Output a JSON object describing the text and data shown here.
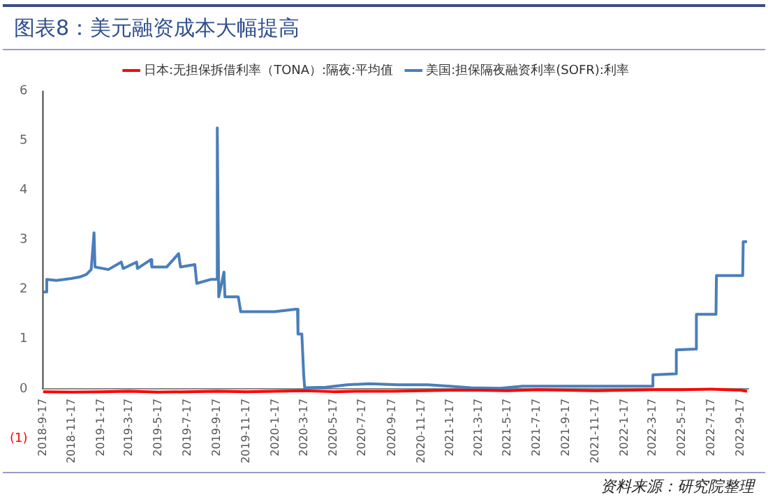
{
  "chart_data": {
    "type": "line",
    "title": "图表8：美元融资成本大幅提高",
    "x": [
      "2018-09-17",
      "2018-11-17",
      "2019-01-17",
      "2019-03-17",
      "2019-05-17",
      "2019-07-17",
      "2019-09-17",
      "2019-11-17",
      "2020-01-17",
      "2020-03-17",
      "2020-05-17",
      "2020-07-17",
      "2020-09-17",
      "2020-11-17",
      "2021-01-17",
      "2021-03-17",
      "2021-05-17",
      "2021-07-17",
      "2021-09-17",
      "2021-11-17",
      "2022-01-17",
      "2022-03-17",
      "2022-05-17",
      "2022-07-17",
      "2022-09-17",
      "2022-09-30"
    ],
    "series": [
      {
        "name": "日本:无担保拆借利率（TONA）:隔夜:平均值",
        "color": "#ff0000",
        "values": [
          -0.06,
          -0.07,
          -0.06,
          -0.05,
          -0.07,
          -0.06,
          -0.05,
          -0.06,
          -0.05,
          -0.04,
          -0.06,
          -0.05,
          -0.05,
          -0.04,
          -0.03,
          -0.03,
          -0.04,
          -0.02,
          -0.03,
          -0.04,
          -0.03,
          -0.02,
          -0.02,
          -0.01,
          -0.03,
          -0.05
        ]
      },
      {
        "name": "美国:担保隔夜融资利率(SOFR):利率",
        "color": "#4a7ebb",
        "x": [
          "2018-09-17",
          "2018-09-24",
          "2018-09-25",
          "2018-10-15",
          "2018-11-01",
          "2018-11-15",
          "2018-12-03",
          "2018-12-17",
          "2018-12-27",
          "2019-01-02",
          "2019-01-04",
          "2019-02-01",
          "2019-02-28",
          "2019-03-04",
          "2019-04-01",
          "2019-04-03",
          "2019-05-01",
          "2019-05-03",
          "2019-06-03",
          "2019-06-28",
          "2019-07-02",
          "2019-08-01",
          "2019-08-05",
          "2019-09-03",
          "2019-09-16",
          "2019-09-17",
          "2019-09-20",
          "2019-10-01",
          "2019-10-03",
          "2019-10-31",
          "2019-11-05",
          "2019-12-31",
          "2020-01-15",
          "2020-02-28",
          "2020-03-03",
          "2020-03-04",
          "2020-03-12",
          "2020-03-16",
          "2020-03-18",
          "2020-05-01",
          "2020-06-15",
          "2020-08-01",
          "2020-10-01",
          "2020-12-01",
          "2021-01-15",
          "2021-03-01",
          "2021-05-01",
          "2021-06-17",
          "2022-03-16",
          "2022-03-17",
          "2022-05-04",
          "2022-05-05",
          "2022-06-15",
          "2022-06-16",
          "2022-07-27",
          "2022-07-28",
          "2022-09-21",
          "2022-09-22",
          "2022-09-30"
        ],
        "values": [
          1.95,
          1.95,
          2.2,
          2.18,
          2.2,
          2.22,
          2.25,
          2.3,
          2.4,
          3.14,
          2.45,
          2.4,
          2.55,
          2.42,
          2.55,
          2.42,
          2.6,
          2.45,
          2.45,
          2.72,
          2.45,
          2.5,
          2.12,
          2.2,
          2.2,
          5.25,
          1.85,
          2.35,
          1.85,
          1.85,
          1.55,
          1.55,
          1.55,
          1.6,
          1.6,
          1.1,
          1.1,
          0.26,
          0.02,
          0.03,
          0.08,
          0.1,
          0.08,
          0.08,
          0.05,
          0.02,
          0.01,
          0.05,
          0.05,
          0.28,
          0.3,
          0.78,
          0.8,
          1.5,
          1.5,
          2.28,
          2.28,
          2.96,
          2.96
        ]
      }
    ],
    "xlim": [
      "2018-09-17",
      "2022-10-03"
    ],
    "xticks": [
      {
        "value": "2018-09-17",
        "label": "2018-9-17"
      },
      {
        "value": "2018-11-17",
        "label": "2018-11-17"
      },
      {
        "value": "2019-01-17",
        "label": "2019-1-17"
      },
      {
        "value": "2019-03-17",
        "label": "2019-3-17"
      },
      {
        "value": "2019-05-17",
        "label": "2019-5-17"
      },
      {
        "value": "2019-07-17",
        "label": "2019-7-17"
      },
      {
        "value": "2019-09-17",
        "label": "2019-9-17"
      },
      {
        "value": "2019-11-17",
        "label": "2019-11-17"
      },
      {
        "value": "2020-01-17",
        "label": "2020-1-17"
      },
      {
        "value": "2020-03-17",
        "label": "2020-3-17"
      },
      {
        "value": "2020-05-17",
        "label": "2020-5-17"
      },
      {
        "value": "2020-07-17",
        "label": "2020-7-17"
      },
      {
        "value": "2020-09-17",
        "label": "2020-9-17"
      },
      {
        "value": "2020-11-17",
        "label": "2020-11-17"
      },
      {
        "value": "2021-01-17",
        "label": "2021-1-17"
      },
      {
        "value": "2021-03-17",
        "label": "2021-3-17"
      },
      {
        "value": "2021-05-17",
        "label": "2021-5-17"
      },
      {
        "value": "2021-07-17",
        "label": "2021-7-17"
      },
      {
        "value": "2021-09-17",
        "label": "2021-9-17"
      },
      {
        "value": "2021-11-17",
        "label": "2021-11-17"
      },
      {
        "value": "2022-01-17",
        "label": "2022-1-17"
      },
      {
        "value": "2022-03-17",
        "label": "2022-3-17"
      },
      {
        "value": "2022-05-17",
        "label": "2022-5-17"
      },
      {
        "value": "2022-07-17",
        "label": "2022-7-17"
      },
      {
        "value": "2022-09-17",
        "label": "2022-9-17"
      }
    ],
    "ylim": [
      -1,
      6
    ],
    "yticks": [
      {
        "value": -1,
        "label": "(1)"
      },
      0,
      1,
      2,
      3,
      4,
      5,
      6
    ],
    "legend": "top",
    "grid": false,
    "marker": "none",
    "line_style": "solid",
    "annotations": [
      "资料来源：研究院整理"
    ]
  }
}
